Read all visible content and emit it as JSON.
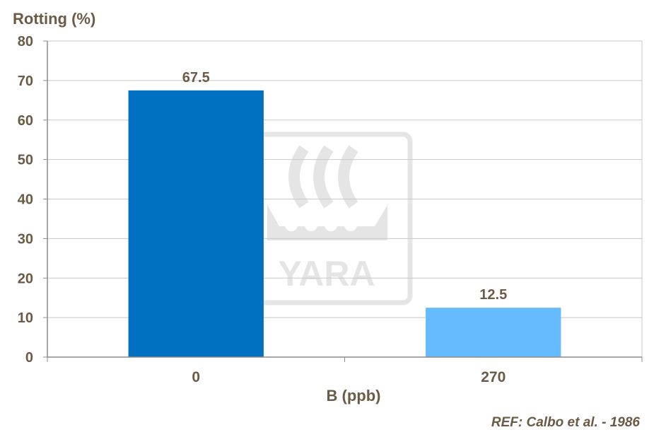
{
  "chart_data": {
    "type": "bar",
    "ylabel": "Rotting (%)",
    "xlabel": "B (ppb)",
    "categories": [
      "0",
      "270"
    ],
    "values": [
      67.5,
      12.5
    ],
    "data_labels": [
      "67.5",
      "12.5"
    ],
    "bar_colors": [
      "#0070c0",
      "#66bbff"
    ],
    "ylim": [
      0,
      80
    ],
    "yticks": [
      "0",
      "10",
      "20",
      "30",
      "40",
      "50",
      "60",
      "70",
      "80"
    ],
    "grid": true,
    "legend": "none"
  },
  "reference": "REF: Calbo et al. - 1986",
  "watermark": {
    "text": "YARA",
    "icon": "yara-viking-ship-logo"
  }
}
